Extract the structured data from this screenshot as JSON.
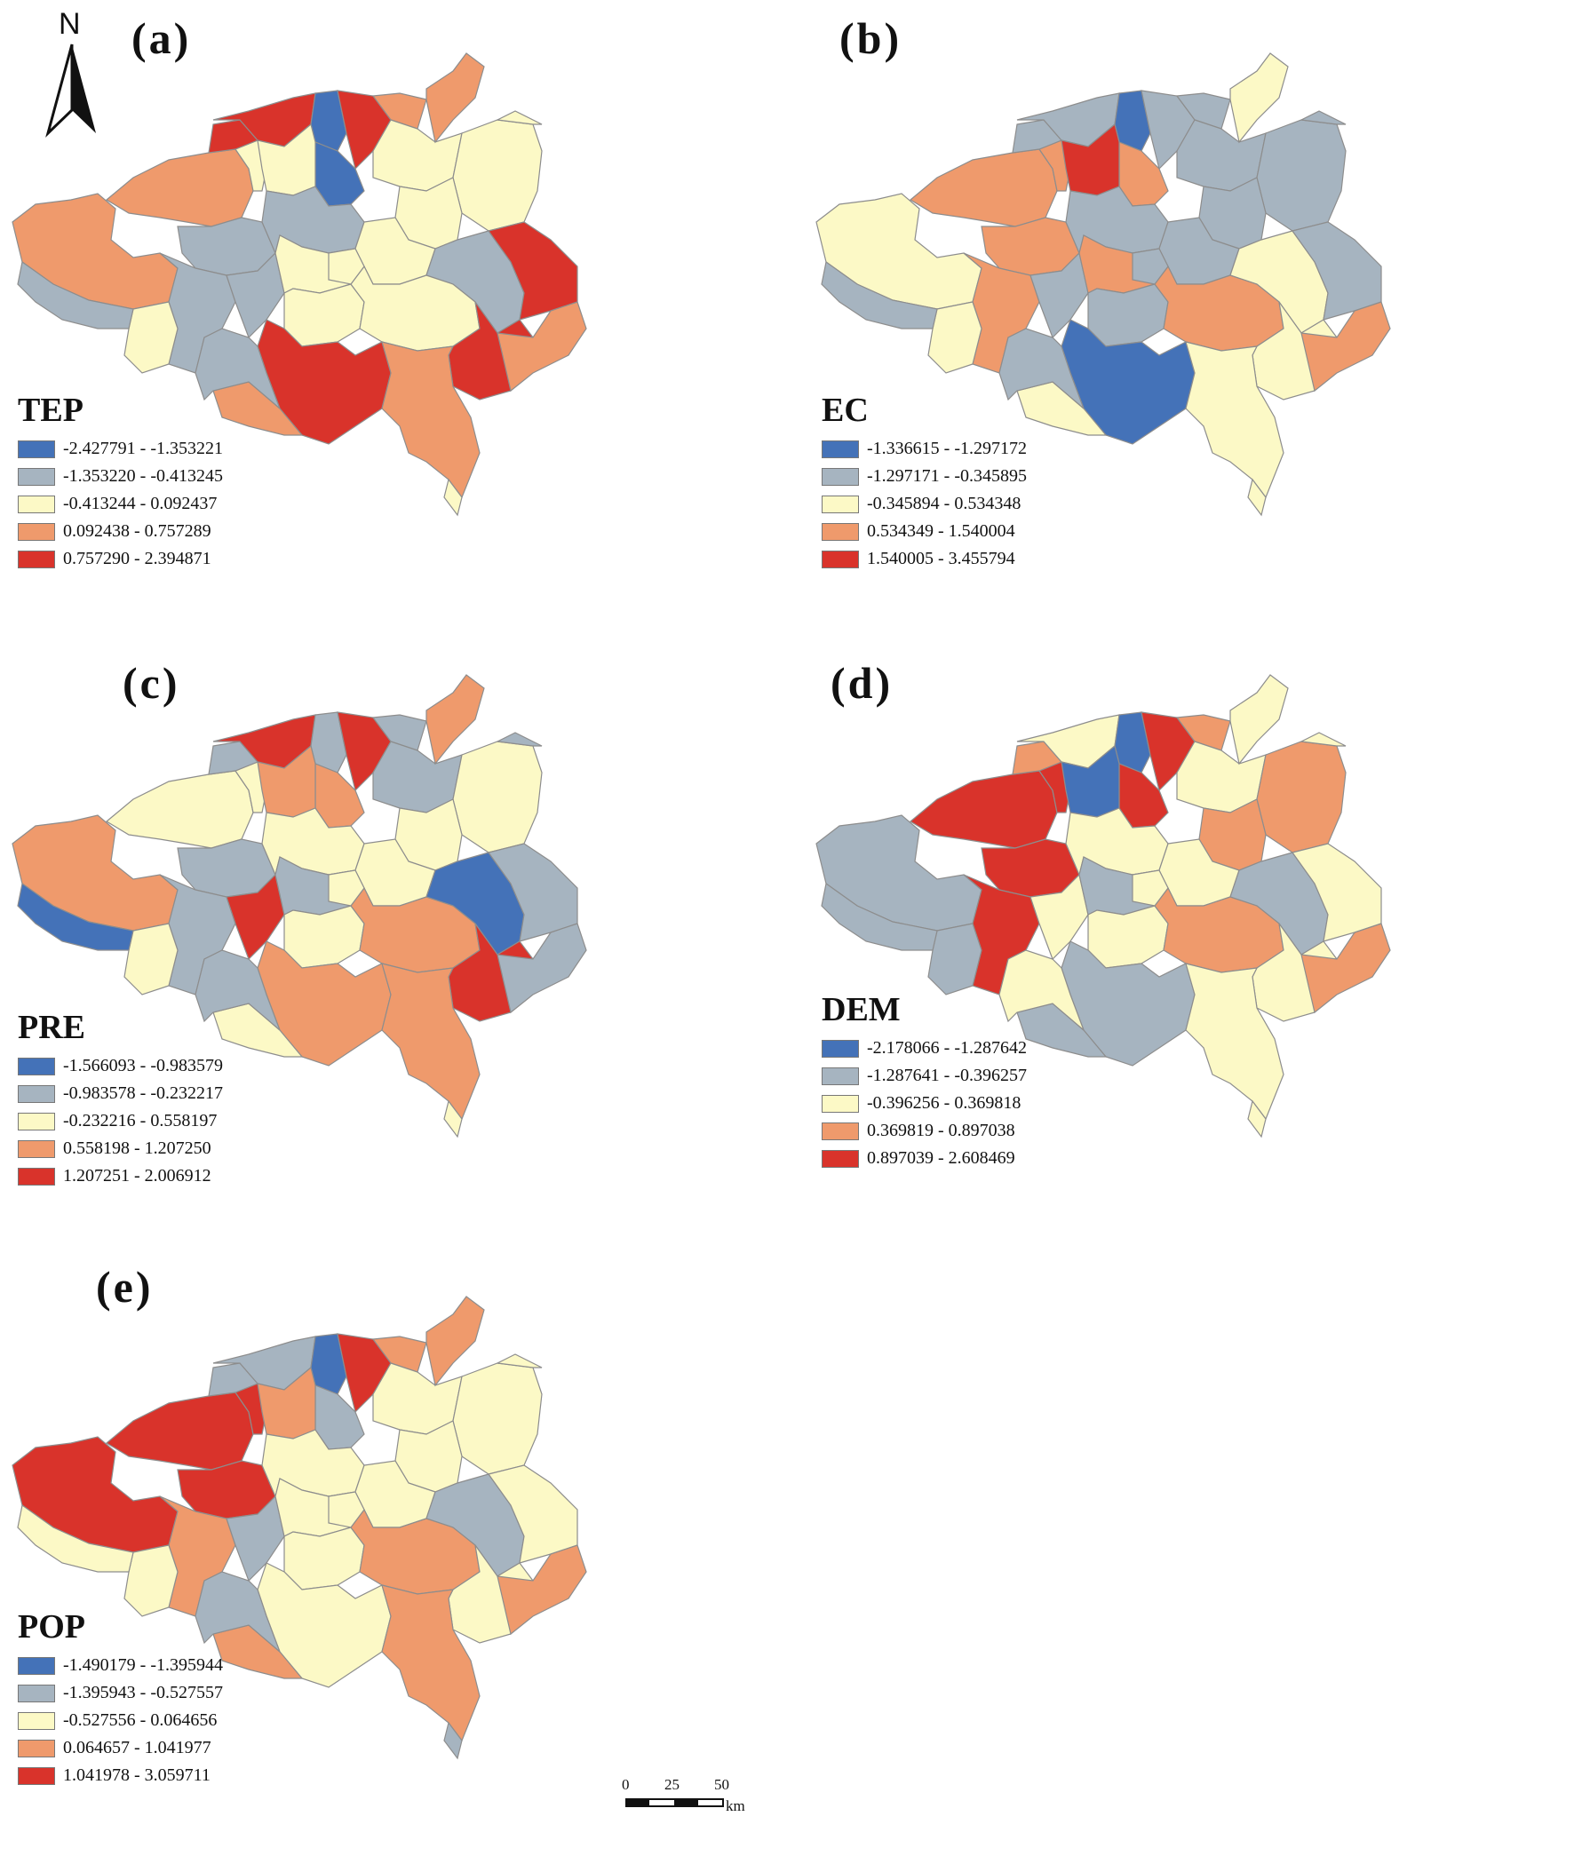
{
  "colors": {
    "class1": "#4472b8",
    "class2": "#a6b4c0",
    "class3": "#fcf9c6",
    "class4": "#ef9a6c",
    "class5": "#d9332b",
    "border": "#8d8d8d"
  },
  "panels": [
    {
      "id": "a",
      "label": "(a)",
      "variable": "TEP",
      "classes": [
        "-2.427791 - -1.353221",
        "-1.353220 - -0.413245",
        "-0.413244 - 0.092437",
        "0.092438 - 0.757289",
        "0.757290 - 2.394871"
      ],
      "region_classes": [
        4,
        4,
        2,
        3,
        5,
        2,
        5,
        1,
        5,
        1,
        4,
        3,
        3,
        3,
        3,
        2,
        2,
        3,
        3,
        2,
        5,
        3,
        3,
        5,
        5,
        4,
        4,
        2,
        3,
        3,
        4,
        3,
        2,
        4,
        3
      ]
    },
    {
      "id": "b",
      "label": "(b)",
      "variable": "EC",
      "classes": [
        "-1.336615 - -1.297172",
        "-1.297171 - -0.345895",
        "-0.345894 - 0.534348",
        "0.534349 - 1.540004",
        "1.540005 - 3.455794"
      ],
      "region_classes": [
        3,
        4,
        4,
        4,
        2,
        4,
        2,
        1,
        2,
        4,
        2,
        2,
        5,
        2,
        2,
        2,
        2,
        4,
        2,
        3,
        2,
        2,
        4,
        3,
        1,
        3,
        3,
        2,
        2,
        2,
        3,
        3,
        2,
        4,
        3
      ]
    },
    {
      "id": "c",
      "label": "(c)",
      "variable": "PRE",
      "classes": [
        "-1.566093 - -0.983579",
        "-0.983578 - -0.232217",
        "-0.232216 - 0.558197",
        "0.558198 - 1.207250",
        "1.207251 - 2.006912"
      ],
      "region_classes": [
        4,
        3,
        2,
        3,
        2,
        2,
        5,
        2,
        5,
        4,
        2,
        2,
        4,
        3,
        3,
        3,
        5,
        2,
        3,
        1,
        2,
        3,
        4,
        5,
        4,
        4,
        3,
        2,
        2,
        3,
        4,
        3,
        1,
        2,
        3
      ]
    },
    {
      "id": "d",
      "label": "(d)",
      "variable": "DEM",
      "classes": [
        "-2.178066 - -1.287642",
        "-1.287641 - -0.396257",
        "-0.396256 - 0.369818",
        "0.369819 - 0.897038",
        "0.897039 - 2.608469"
      ],
      "region_classes": [
        2,
        5,
        5,
        5,
        4,
        5,
        3,
        1,
        5,
        5,
        4,
        3,
        1,
        4,
        4,
        3,
        3,
        2,
        3,
        2,
        3,
        3,
        4,
        3,
        2,
        3,
        2,
        3,
        3,
        3,
        3,
        2,
        2,
        4,
        3
      ]
    },
    {
      "id": "e",
      "label": "(e)",
      "variable": "POP",
      "classes": [
        "-1.490179 - -1.395944",
        "-1.395943 - -0.527557",
        "-0.527556 - 0.064656",
        "0.064657 - 1.041977",
        "1.041978 - 3.059711"
      ],
      "region_classes": [
        5,
        5,
        5,
        5,
        2,
        4,
        2,
        1,
        5,
        2,
        4,
        3,
        4,
        3,
        3,
        3,
        2,
        3,
        3,
        2,
        3,
        3,
        4,
        3,
        3,
        4,
        4,
        2,
        3,
        3,
        4,
        3,
        3,
        4,
        2
      ]
    }
  ],
  "north_arrow": {
    "letter": "N"
  },
  "scale_bar": {
    "ticks": [
      "0",
      "25",
      "50"
    ],
    "unit": "km"
  }
}
